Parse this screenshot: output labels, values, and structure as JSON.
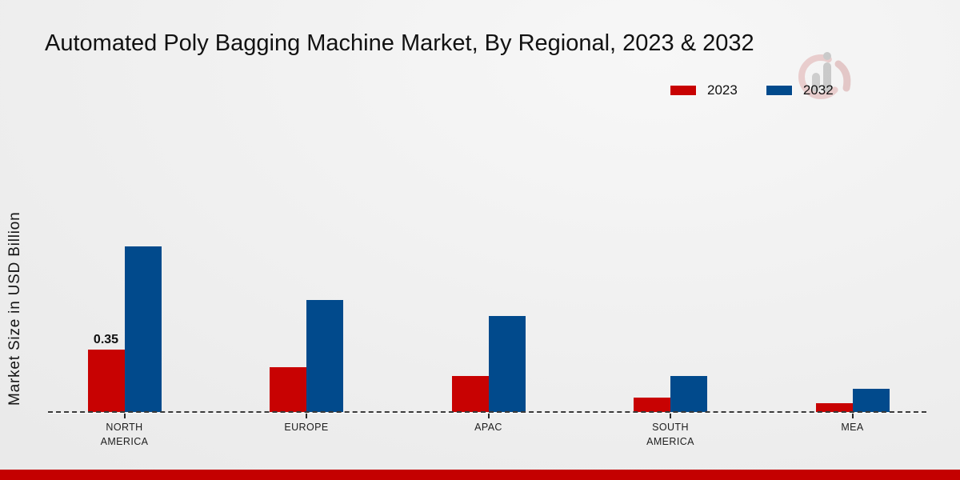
{
  "chart_data": {
    "type": "bar",
    "title": "Automated Poly Bagging Machine Market, By Regional, 2023 & 2032",
    "ylabel": "Market Size in USD Billion",
    "xlabel": "",
    "unit": "USD Billion",
    "categories": [
      "NORTH AMERICA",
      "EUROPE",
      "APAC",
      "SOUTH AMERICA",
      "MEA"
    ],
    "category_lines": [
      [
        "NORTH",
        "AMERICA"
      ],
      [
        "EUROPE"
      ],
      [
        "APAC"
      ],
      [
        "SOUTH",
        "AMERICA"
      ],
      [
        "MEA"
      ]
    ],
    "series": [
      {
        "name": "2023",
        "color": "#c80202",
        "values": [
          0.35,
          0.25,
          0.2,
          0.08,
          0.05
        ]
      },
      {
        "name": "2032",
        "color": "#014a8c",
        "values": [
          0.93,
          0.63,
          0.54,
          0.2,
          0.13
        ]
      }
    ],
    "data_labels": [
      {
        "series_index": 0,
        "category_index": 0,
        "text": "0.35"
      }
    ],
    "ylim": [
      0,
      1.0
    ],
    "grid": false,
    "legend_position": "top-right",
    "baseline_style": "dashed",
    "axis_visible": false
  },
  "page": {
    "footer_color": "#c40000"
  },
  "icons": {
    "watermark": "bar-chart-ring-logo"
  }
}
